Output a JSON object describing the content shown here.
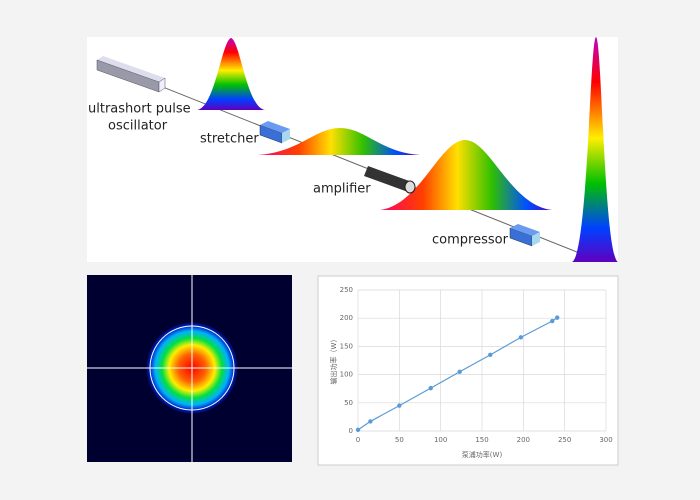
{
  "diagram": {
    "labels": {
      "oscillator": [
        "ultrashort pulse",
        "oscillator"
      ],
      "stretcher": "stretcher",
      "amplifier": "amplifier",
      "compressor": "compressor"
    }
  },
  "chart_data": {
    "type": "line",
    "x_label": "泵浦功率(W)",
    "y_label": "输出功率（W）",
    "x": [
      0,
      15,
      50,
      88,
      123,
      160,
      197,
      235,
      241
    ],
    "values": [
      2,
      17,
      45,
      76,
      105,
      135,
      166,
      195,
      201
    ],
    "color": "#5b9bd5",
    "xlim": [
      0,
      300
    ],
    "xticks": [
      0,
      50,
      100,
      150,
      200,
      250,
      300
    ],
    "ylim": [
      0,
      250
    ],
    "yticks": [
      0,
      50,
      100,
      150,
      200,
      250
    ],
    "grid": true
  }
}
